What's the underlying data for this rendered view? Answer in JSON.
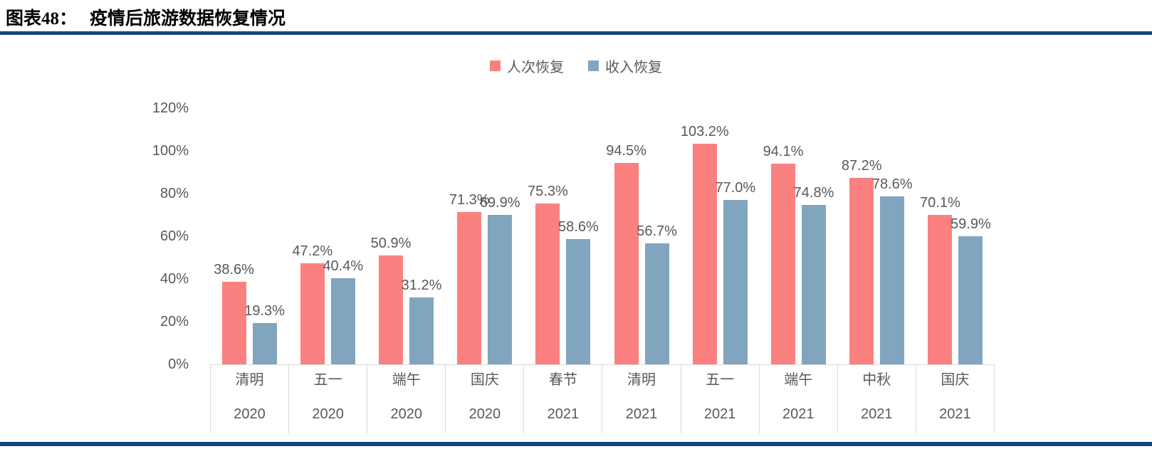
{
  "header": {
    "chart_label": "图表48：",
    "chart_title": "疫情后旅游数据恢复情况"
  },
  "chart_data": {
    "type": "bar",
    "title": "疫情后旅游数据恢复情况",
    "categories": [
      "清明",
      "五一",
      "端午",
      "国庆",
      "春节",
      "清明",
      "五一",
      "端午",
      "中秋",
      "国庆"
    ],
    "category_years": [
      "2020",
      "2020",
      "2020",
      "2020",
      "2021",
      "2021",
      "2021",
      "2021",
      "2021",
      "2021"
    ],
    "series": [
      {
        "name": "人次恢复",
        "color": "#FA817F",
        "values": [
          38.6,
          47.2,
          50.9,
          71.3,
          75.3,
          94.5,
          103.2,
          94.1,
          87.2,
          70.1
        ],
        "labels": [
          "38.6%",
          "47.2%",
          "50.9%",
          "71.3%",
          "75.3%",
          "94.5%",
          "103.2%",
          "94.1%",
          "87.2%",
          "70.1%"
        ]
      },
      {
        "name": "收入恢复",
        "color": "#82A5BF",
        "values": [
          19.3,
          40.4,
          31.2,
          69.9,
          58.6,
          56.7,
          77.0,
          74.8,
          78.6,
          59.9
        ],
        "labels": [
          "19.3%",
          "40.4%",
          "31.2%",
          "69.9%",
          "58.6%",
          "56.7%",
          "77.0%",
          "74.8%",
          "78.6%",
          "59.9%"
        ]
      }
    ],
    "xlabel": "",
    "ylabel": "",
    "ylim": [
      0,
      120
    ],
    "yticks": [
      0,
      20,
      40,
      60,
      80,
      100,
      120
    ],
    "ytick_labels": [
      "0%",
      "20%",
      "40%",
      "60%",
      "80%",
      "100%",
      "120%"
    ],
    "grid": false,
    "legend_position": "top"
  },
  "colors": {
    "rule": "#16477A",
    "text_gray": "#595959",
    "axis_border": "#D9D9D9",
    "title_text": "#000000"
  }
}
